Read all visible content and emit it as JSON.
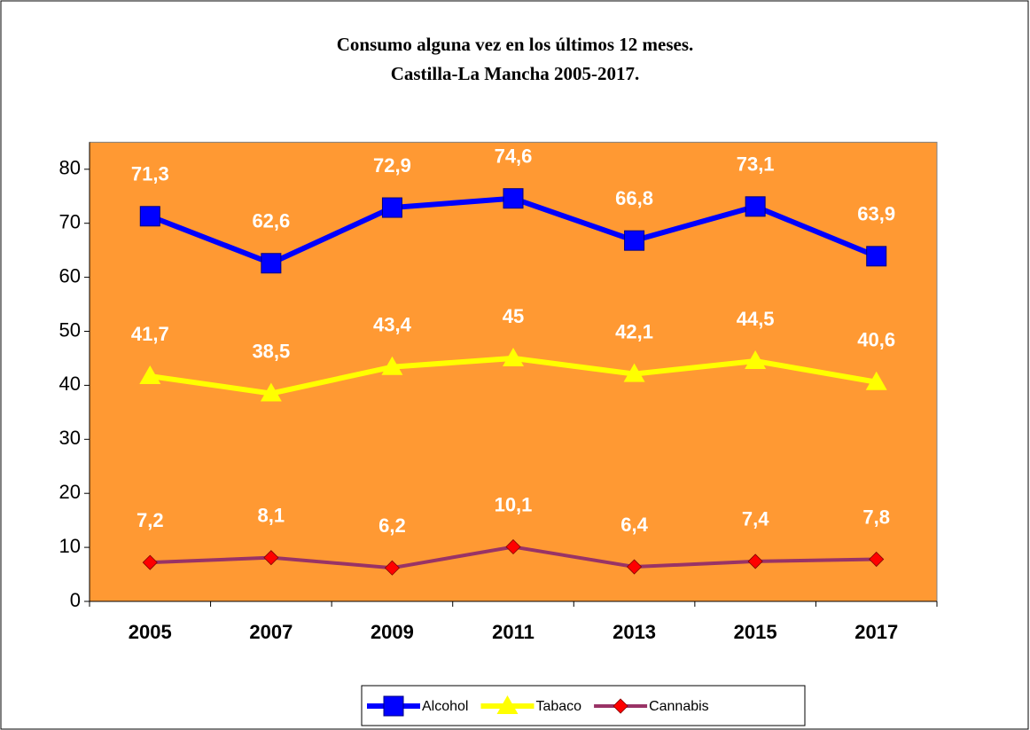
{
  "chart_data": {
    "type": "line",
    "title": "Consumo alguna vez en los últimos 12 meses.",
    "subtitle": "Castilla-La Mancha 2005-2017.",
    "categories": [
      "2005",
      "2007",
      "2009",
      "2011",
      "2013",
      "2015",
      "2017"
    ],
    "series": [
      {
        "name": "Alcohol",
        "color": "#0000ff",
        "marker": "square",
        "marker_color": "#0000ff",
        "values": [
          71.3,
          62.6,
          72.9,
          74.6,
          66.8,
          73.1,
          63.9
        ],
        "value_labels": [
          "71,3",
          "62,6",
          "72,9",
          "74,6",
          "66,8",
          "73,1",
          "63,9"
        ]
      },
      {
        "name": "Tabaco",
        "color": "#ffff00",
        "marker": "triangle",
        "marker_color": "#ffff00",
        "values": [
          41.7,
          38.5,
          43.4,
          45,
          42.1,
          44.5,
          40.6
        ],
        "value_labels": [
          "41,7",
          "38,5",
          "43,4",
          "45",
          "42,1",
          "44,5",
          "40,6"
        ]
      },
      {
        "name": "Cannabis",
        "color": "#993366",
        "marker": "diamond",
        "marker_color": "#ff0000",
        "values": [
          7.2,
          8.1,
          6.2,
          10.1,
          6.4,
          7.4,
          7.8
        ],
        "value_labels": [
          "7,2",
          "8,1",
          "6,2",
          "10,1",
          "6,4",
          "7,4",
          "7,8"
        ]
      }
    ],
    "ylim": [
      0,
      85
    ],
    "yticks": [
      0,
      10,
      20,
      30,
      40,
      50,
      60,
      70,
      80
    ],
    "plot_background": "#ff9933",
    "legend": "bottom"
  }
}
